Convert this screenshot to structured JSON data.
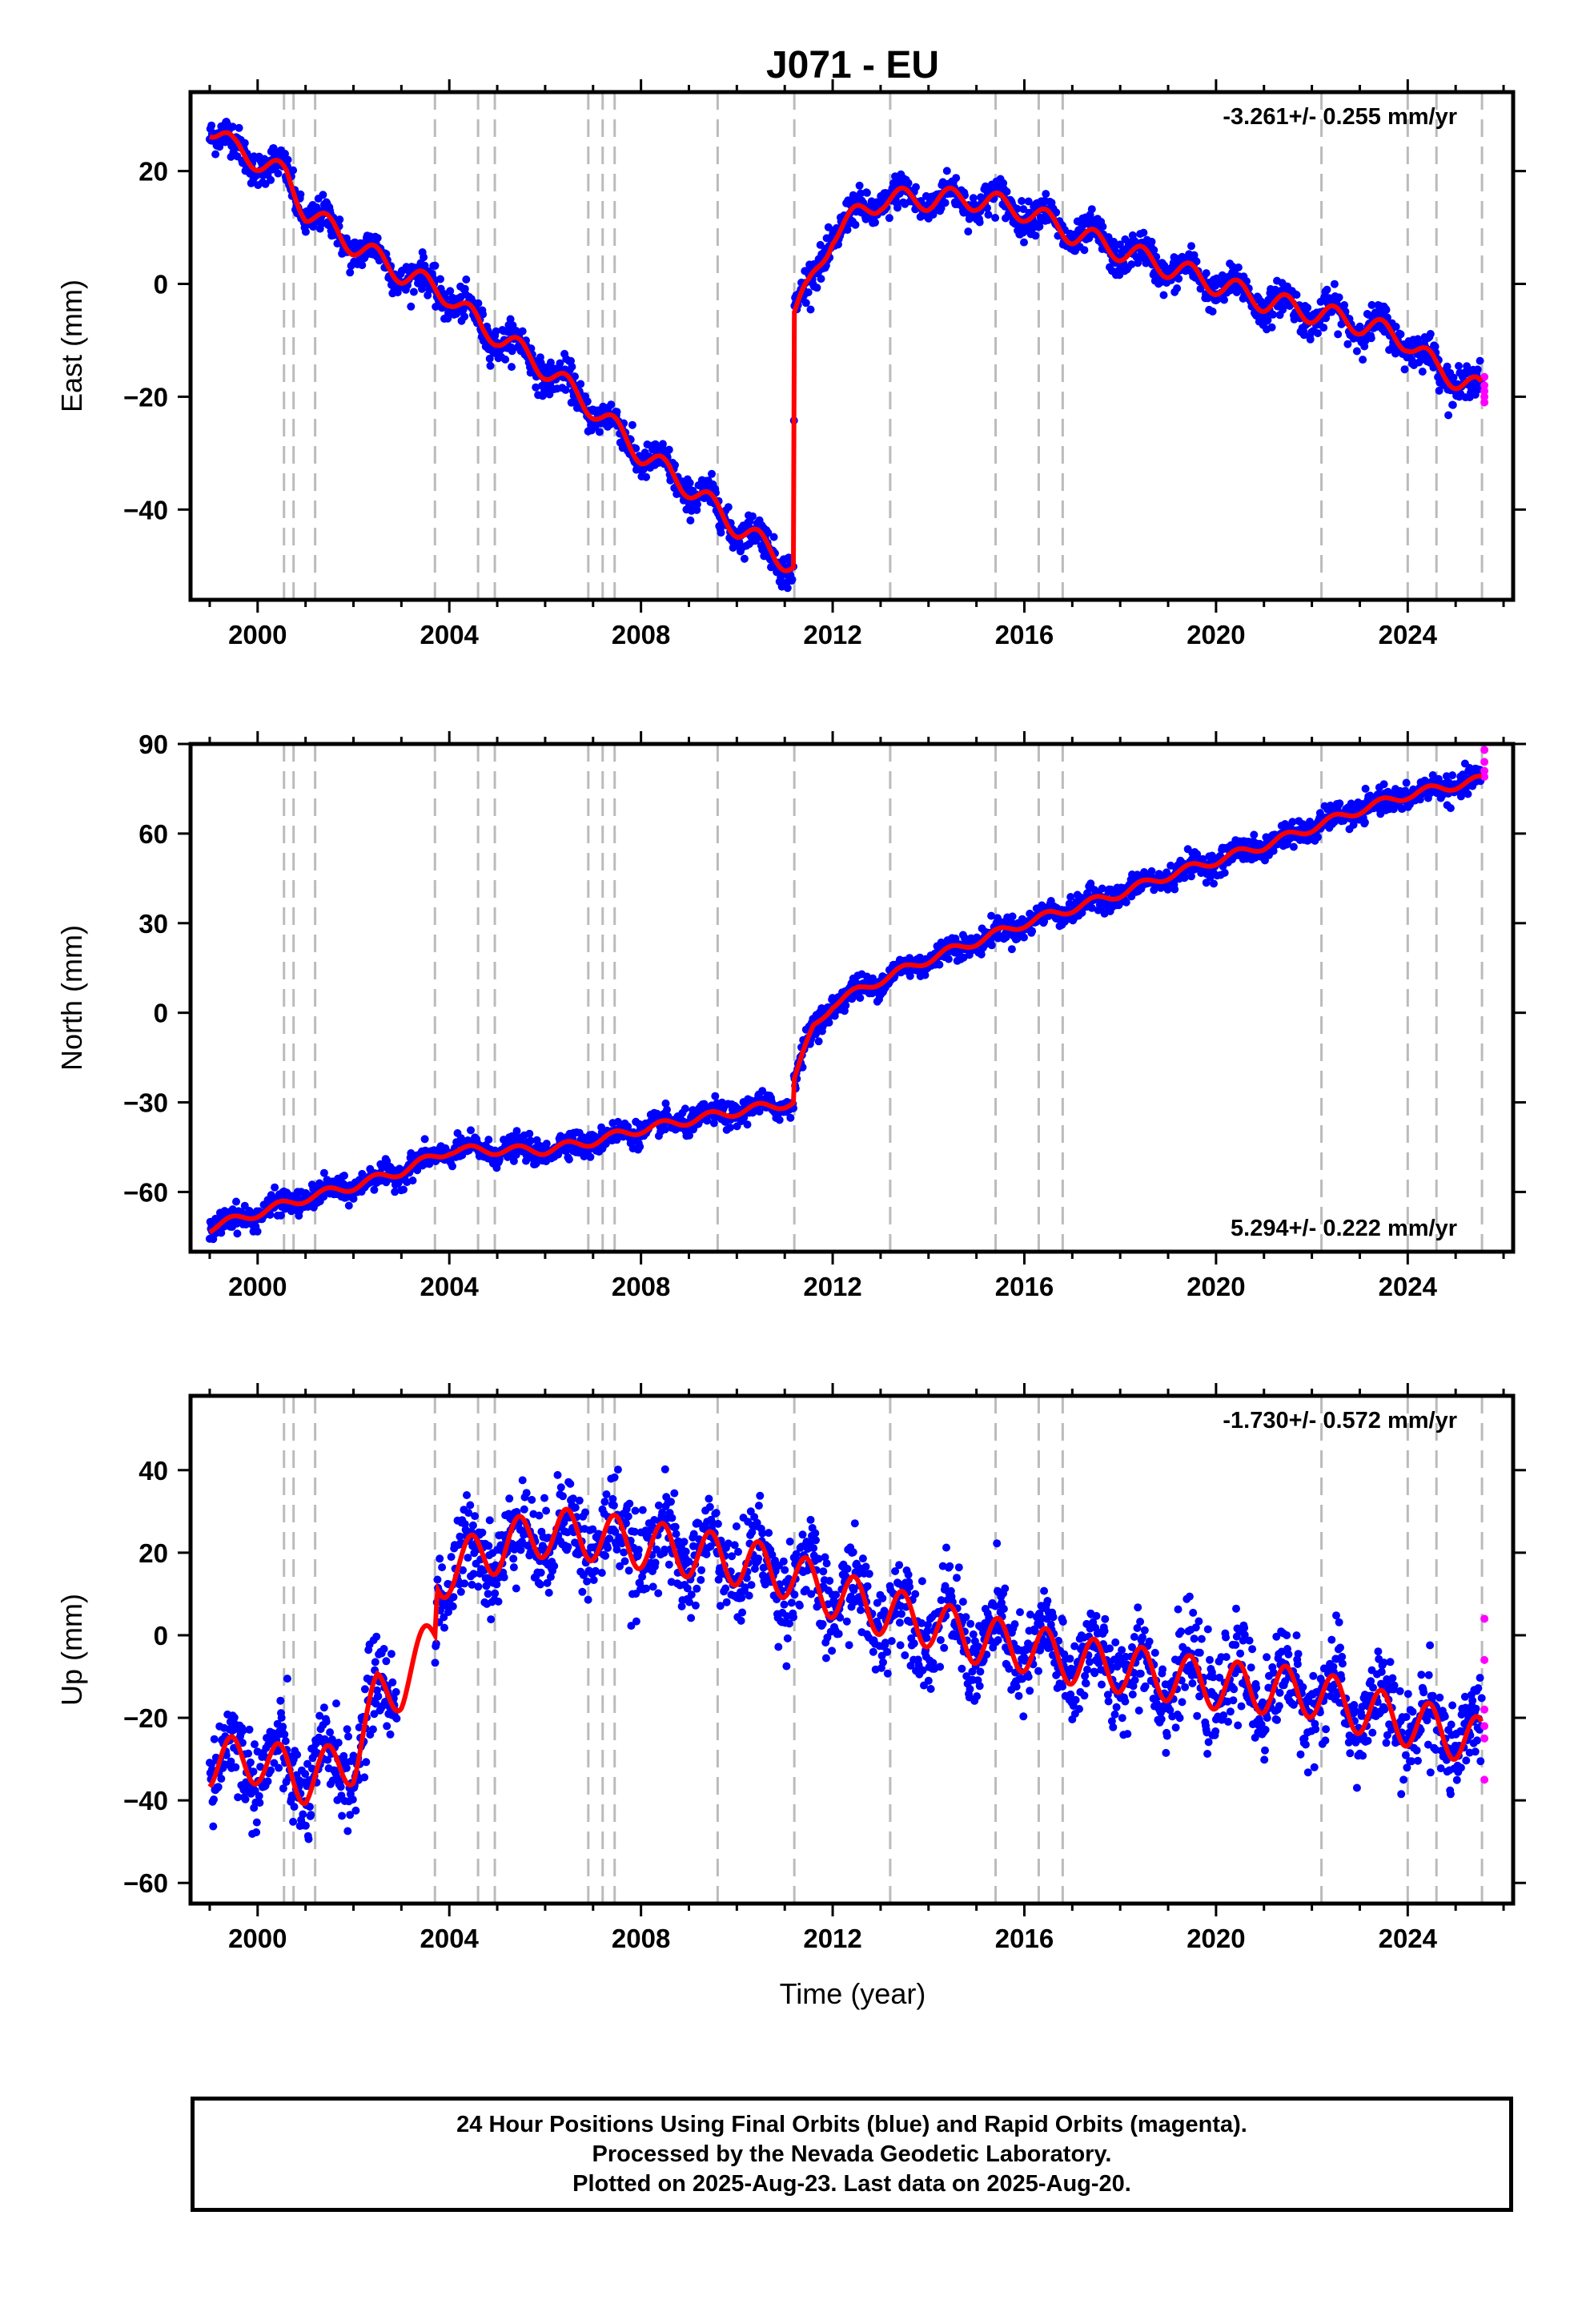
{
  "title": "J071 - EU",
  "colors": {
    "final_orbits": "#0000ff",
    "rapid_orbits": "#ff00ff",
    "model_fit": "#ff0000",
    "event_lines": "#bbbbbb",
    "frame": "#000000"
  },
  "xlabel": "Time (year)",
  "event_years": [
    2000.55,
    2000.75,
    2001.2,
    2003.7,
    2004.6,
    2004.95,
    2006.9,
    2007.2,
    2007.45,
    2009.6,
    2011.2,
    2013.2,
    2015.4,
    2016.3,
    2016.8,
    2022.2,
    2024.0,
    2024.6,
    2025.55
  ],
  "footer": {
    "line1": "24 Hour Positions Using Final Orbits (blue) and Rapid Orbits (magenta).",
    "line2": "Processed by the Nevada Geodetic Laboratory.",
    "line3": "Plotted on 2025-Aug-23. Last data on 2025-Aug-20."
  },
  "chart_data": [
    {
      "type": "scatter",
      "component": "east",
      "ylabel": "East (mm)",
      "rate_text": "-3.261+/- 0.255 mm/yr",
      "xlim": [
        1998.6,
        2026.2
      ],
      "ylim": [
        -56,
        34
      ],
      "xticks": [
        2000,
        2004,
        2008,
        2012,
        2016,
        2020,
        2024
      ],
      "yticks": [
        -40,
        -20,
        0,
        20
      ],
      "model_knots": [
        [
          1999.0,
          28
        ],
        [
          1999.5,
          24
        ],
        [
          2000.0,
          22
        ],
        [
          2000.6,
          19
        ],
        [
          2001.0,
          13
        ],
        [
          2002.0,
          7
        ],
        [
          2003.0,
          2
        ],
        [
          2004.0,
          -2
        ],
        [
          2004.7,
          -8
        ],
        [
          2005.0,
          -9
        ],
        [
          2006.0,
          -15
        ],
        [
          2007.0,
          -22
        ],
        [
          2008.0,
          -30
        ],
        [
          2009.0,
          -36
        ],
        [
          2010.0,
          -43
        ],
        [
          2011.18,
          -50
        ],
        [
          2011.2,
          -5
        ],
        [
          2011.5,
          -1
        ],
        [
          2012.0,
          9
        ],
        [
          2013.0,
          15
        ],
        [
          2014.0,
          15
        ],
        [
          2015.0,
          15
        ],
        [
          2016.0,
          13
        ],
        [
          2017.0,
          9
        ],
        [
          2018.0,
          6
        ],
        [
          2019.0,
          3
        ],
        [
          2020.0,
          0
        ],
        [
          2021.0,
          -3
        ],
        [
          2022.0,
          -5
        ],
        [
          2023.0,
          -7
        ],
        [
          2024.0,
          -10
        ],
        [
          2024.6,
          -15
        ],
        [
          2025.55,
          -19
        ]
      ],
      "seasonal_amplitude": 2.0,
      "scatter_sigma": 1.5,
      "rapid_points": [
        [
          2025.6,
          -16.5
        ],
        [
          2025.6,
          -18
        ],
        [
          2025.6,
          -19
        ],
        [
          2025.6,
          -20
        ],
        [
          2025.6,
          -21
        ]
      ]
    },
    {
      "type": "scatter",
      "component": "north",
      "ylabel": "North (mm)",
      "rate_text": "5.294+/- 0.222 mm/yr",
      "xlim": [
        1998.6,
        2026.2
      ],
      "ylim": [
        -80,
        90
      ],
      "xticks": [
        2000,
        2004,
        2008,
        2012,
        2016,
        2020,
        2024
      ],
      "yticks": [
        -60,
        -30,
        0,
        30,
        60,
        90
      ],
      "model_knots": [
        [
          1999.0,
          -72
        ],
        [
          2000.0,
          -67
        ],
        [
          2001.0,
          -62
        ],
        [
          2002.0,
          -58
        ],
        [
          2003.0,
          -53
        ],
        [
          2004.0,
          -46
        ],
        [
          2005.0,
          -46
        ],
        [
          2006.0,
          -46
        ],
        [
          2007.0,
          -43
        ],
        [
          2008.0,
          -39
        ],
        [
          2009.0,
          -36
        ],
        [
          2010.0,
          -33
        ],
        [
          2011.18,
          -30
        ],
        [
          2011.2,
          -22
        ],
        [
          2011.6,
          -5
        ],
        [
          2012.0,
          3
        ],
        [
          2013.0,
          11
        ],
        [
          2014.0,
          18
        ],
        [
          2015.0,
          24
        ],
        [
          2016.0,
          30
        ],
        [
          2017.0,
          35
        ],
        [
          2018.0,
          40
        ],
        [
          2019.0,
          46
        ],
        [
          2020.0,
          51
        ],
        [
          2021.0,
          56
        ],
        [
          2022.0,
          62
        ],
        [
          2023.0,
          68
        ],
        [
          2024.0,
          73
        ],
        [
          2025.55,
          78
        ]
      ],
      "seasonal_amplitude": 1.5,
      "scatter_sigma": 2.0,
      "rapid_points": [
        [
          2025.6,
          88
        ],
        [
          2025.6,
          84
        ],
        [
          2025.6,
          81
        ],
        [
          2025.6,
          79
        ]
      ]
    },
    {
      "type": "scatter",
      "component": "up",
      "ylabel": "Up (mm)",
      "rate_text": "-1.730+/- 0.572 mm/yr",
      "xlim": [
        1998.6,
        2026.2
      ],
      "ylim": [
        -65,
        58
      ],
      "xticks": [
        2000,
        2004,
        2008,
        2012,
        2016,
        2020,
        2024
      ],
      "yticks": [
        -60,
        -40,
        -20,
        0,
        20,
        40
      ],
      "model_knots": [
        [
          1999.0,
          -31
        ],
        [
          2000.0,
          -30
        ],
        [
          2001.0,
          -35
        ],
        [
          2002.0,
          -30
        ],
        [
          2002.5,
          -15
        ],
        [
          2003.0,
          -12
        ],
        [
          2003.7,
          0
        ],
        [
          2003.75,
          13
        ],
        [
          2004.0,
          16
        ],
        [
          2005.0,
          21
        ],
        [
          2006.0,
          25
        ],
        [
          2007.0,
          24
        ],
        [
          2008.0,
          22
        ],
        [
          2009.0,
          20
        ],
        [
          2010.0,
          18
        ],
        [
          2011.0,
          15
        ],
        [
          2012.0,
          10
        ],
        [
          2013.0,
          6
        ],
        [
          2014.0,
          3
        ],
        [
          2015.0,
          -1
        ],
        [
          2016.0,
          -3
        ],
        [
          2017.0,
          -6
        ],
        [
          2018.0,
          -8
        ],
        [
          2019.0,
          -10
        ],
        [
          2020.0,
          -12
        ],
        [
          2021.0,
          -13
        ],
        [
          2022.0,
          -14
        ],
        [
          2023.0,
          -18
        ],
        [
          2024.0,
          -21
        ],
        [
          2025.55,
          -26
        ]
      ],
      "seasonal_amplitude": 6.0,
      "scatter_sigma": 5.5,
      "rapid_points": [
        [
          2025.6,
          4
        ],
        [
          2025.6,
          -6
        ],
        [
          2025.6,
          -18
        ],
        [
          2025.6,
          -22
        ],
        [
          2025.6,
          -25
        ],
        [
          2025.6,
          -35
        ]
      ]
    }
  ]
}
